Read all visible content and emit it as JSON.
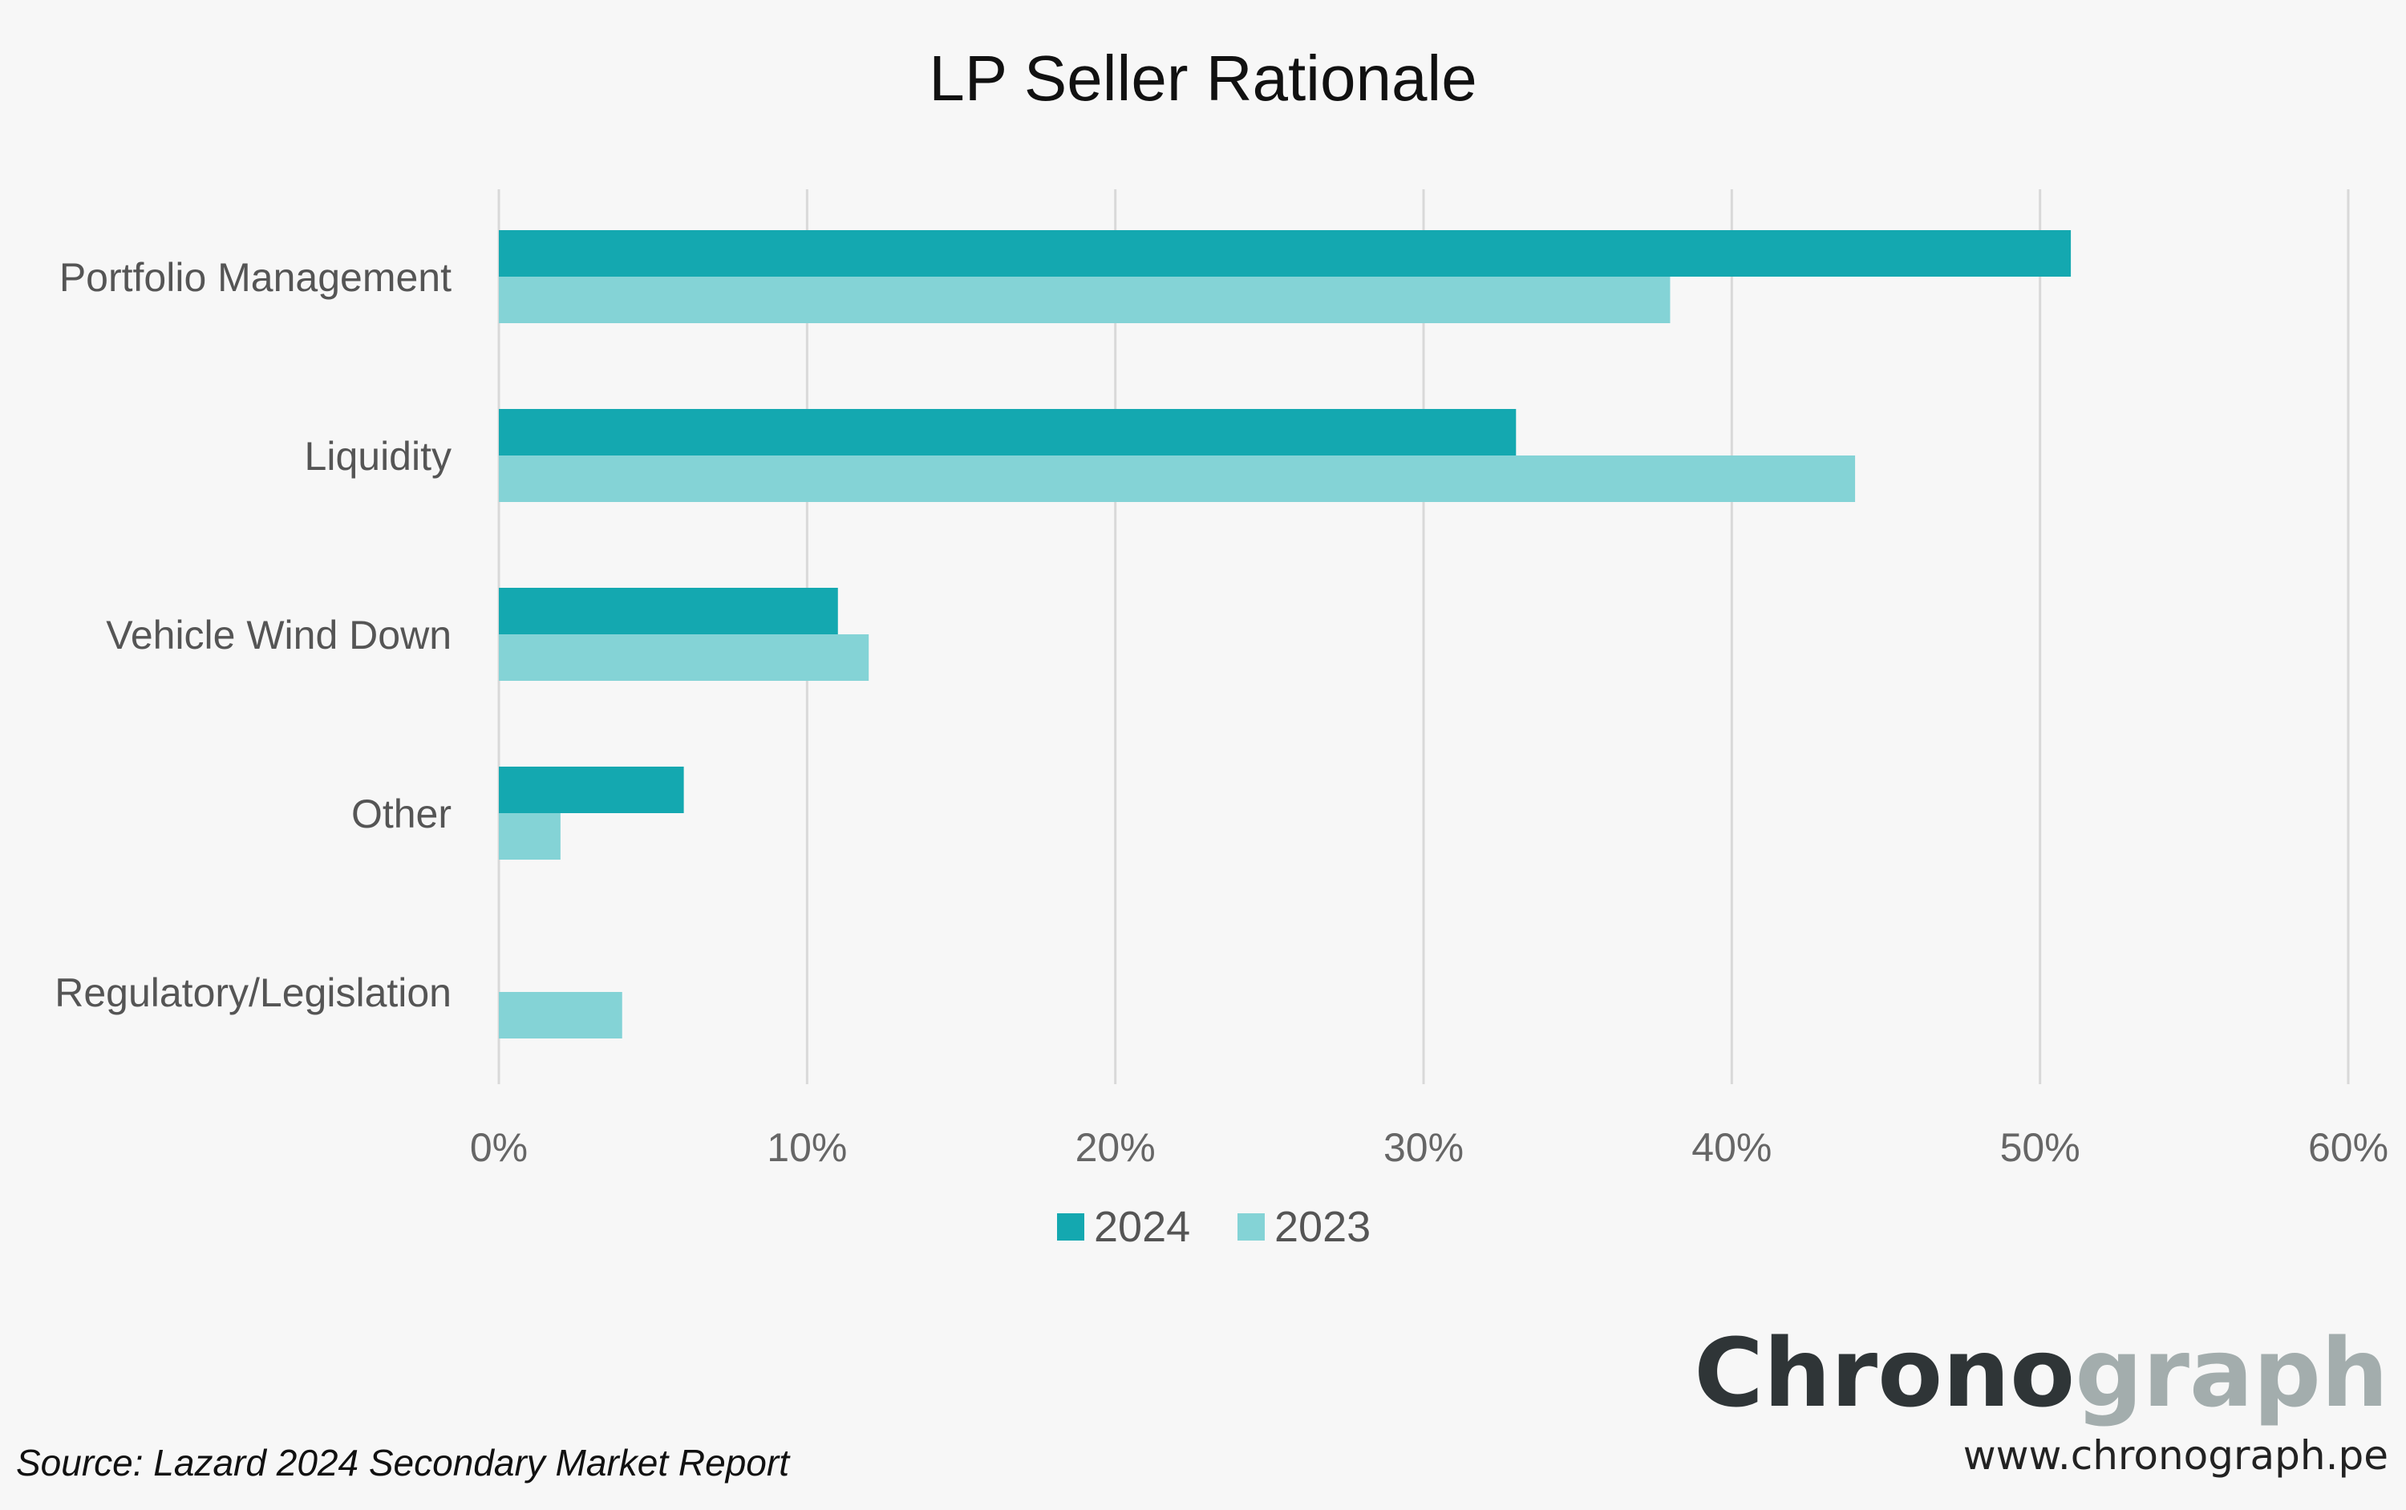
{
  "chart_data": {
    "type": "bar",
    "orientation": "horizontal",
    "title": "LP Seller Rationale",
    "categories": [
      "Portfolio Management",
      "Liquidity",
      "Vehicle Wind Down",
      "Other",
      "Regulatory/Legislation"
    ],
    "series": [
      {
        "name": "2024",
        "values": [
          51,
          33,
          11,
          6,
          0
        ],
        "color": "#14a8b0"
      },
      {
        "name": "2023",
        "values": [
          38,
          44,
          12,
          2,
          4
        ],
        "color": "#84d3d6"
      }
    ],
    "xlim": [
      0,
      60
    ],
    "x_ticks": [
      "0%",
      "10%",
      "20%",
      "30%",
      "40%",
      "50%",
      "60%"
    ],
    "grid": "vertical",
    "legend_position": "bottom-center"
  },
  "source": "Source: Lazard 2024 Secondary Market Report",
  "brand": {
    "part1": "Chrono",
    "part2": "graph",
    "url": "www.chronograph.pe"
  },
  "colors": {
    "background": "#f7f7f7",
    "gridline": "#d9d9d9",
    "brand_dark": "#2f3537",
    "brand_light": "#a3adad"
  }
}
